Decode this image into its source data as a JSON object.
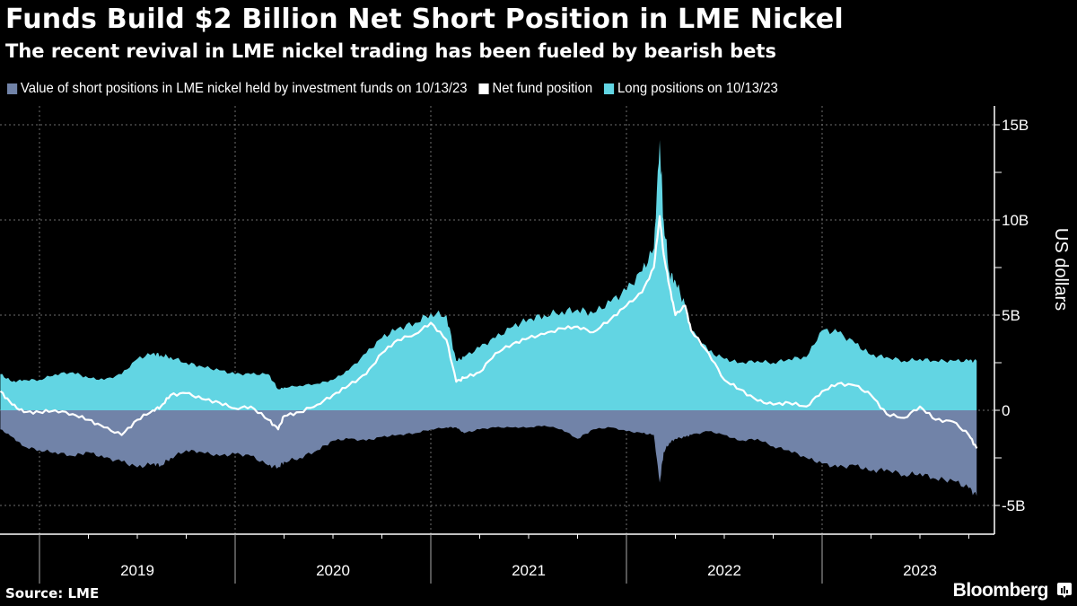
{
  "header": {
    "title": "Funds Build $2 Billion Net Short Position in LME Nickel",
    "subtitle": "The recent revival in LME nickel trading has been fueled by bearish bets"
  },
  "footer": {
    "source": "Source: LME",
    "brand": "Bloomberg"
  },
  "colors": {
    "short": "#7183A8",
    "net": "#FFFFFF",
    "long": "#62D5E3",
    "background": "#000000",
    "grid": "#6E6E6E"
  },
  "chart_data": {
    "type": "area",
    "title": "Funds Build $2 Billion Net Short Position in LME Nickel",
    "subtitle": "The recent revival in LME nickel trading has been fueled by bearish bets",
    "xlabel": "",
    "ylabel": "US dollars",
    "x_unit": "year (fractional)",
    "xlim": [
      2018.8,
      2023.95
    ],
    "ylim": [
      -6.5,
      16.5
    ],
    "y_ticks": [
      {
        "value": 15,
        "label": "15B"
      },
      {
        "value": 10,
        "label": "10B"
      },
      {
        "value": 5,
        "label": "5B"
      },
      {
        "value": 0,
        "label": "0"
      },
      {
        "value": -5,
        "label": "-5B"
      }
    ],
    "x_ticks": [
      {
        "value": 2019.5,
        "label": "2019"
      },
      {
        "value": 2020.5,
        "label": "2020"
      },
      {
        "value": 2021.5,
        "label": "2021"
      },
      {
        "value": 2022.5,
        "label": "2022"
      },
      {
        "value": 2023.5,
        "label": "2023"
      }
    ],
    "year_boundaries": [
      2019,
      2020,
      2021,
      2022,
      2023
    ],
    "grid": true,
    "legend_position": "top-left",
    "units": "US$ billions",
    "x": [
      2018.8,
      2018.86,
      2018.92,
      2019.0,
      2019.08,
      2019.17,
      2019.25,
      2019.33,
      2019.42,
      2019.5,
      2019.58,
      2019.62,
      2019.67,
      2019.75,
      2019.83,
      2019.92,
      2020.0,
      2020.08,
      2020.17,
      2020.22,
      2020.25,
      2020.33,
      2020.42,
      2020.5,
      2020.58,
      2020.67,
      2020.75,
      2020.83,
      2020.92,
      2021.0,
      2021.08,
      2021.13,
      2021.17,
      2021.25,
      2021.33,
      2021.42,
      2021.5,
      2021.58,
      2021.67,
      2021.75,
      2021.83,
      2021.92,
      2022.0,
      2022.08,
      2022.14,
      2022.17,
      2022.19,
      2022.22,
      2022.25,
      2022.3,
      2022.33,
      2022.42,
      2022.5,
      2022.58,
      2022.67,
      2022.75,
      2022.83,
      2022.92,
      2023.0,
      2023.08,
      2023.17,
      2023.25,
      2023.33,
      2023.42,
      2023.5,
      2023.58,
      2023.67,
      2023.75,
      2023.79
    ],
    "series": [
      {
        "name": "Value of short positions in LME nickel held by investment funds on 10/13/23",
        "key": "short",
        "values": [
          -1.0,
          -1.4,
          -1.9,
          -2.1,
          -2.2,
          -2.4,
          -2.2,
          -2.5,
          -2.7,
          -3.0,
          -2.8,
          -2.9,
          -2.5,
          -2.1,
          -2.2,
          -2.4,
          -2.3,
          -2.4,
          -2.9,
          -3.0,
          -2.7,
          -2.5,
          -2.1,
          -1.6,
          -1.5,
          -1.6,
          -1.4,
          -1.3,
          -1.2,
          -1.0,
          -0.9,
          -0.9,
          -1.2,
          -1.0,
          -0.9,
          -0.9,
          -0.9,
          -0.8,
          -1.0,
          -1.5,
          -1.0,
          -0.9,
          -1.1,
          -1.2,
          -1.3,
          -3.8,
          -2.2,
          -1.7,
          -1.5,
          -1.4,
          -1.3,
          -1.1,
          -1.3,
          -1.6,
          -1.5,
          -1.9,
          -2.1,
          -2.5,
          -2.8,
          -3.0,
          -2.9,
          -3.2,
          -3.1,
          -3.4,
          -3.3,
          -3.6,
          -3.7,
          -4.1,
          -4.5
        ]
      },
      {
        "name": "Net fund position",
        "key": "net",
        "values": [
          1.0,
          0.3,
          -0.1,
          -0.1,
          0.0,
          -0.2,
          -0.5,
          -0.9,
          -1.3,
          -0.5,
          0.0,
          0.2,
          0.8,
          0.9,
          0.6,
          0.4,
          0.1,
          0.2,
          -0.5,
          -1.0,
          -0.3,
          -0.1,
          0.3,
          0.8,
          1.3,
          1.9,
          3.0,
          3.7,
          4.0,
          4.6,
          3.7,
          1.5,
          1.7,
          2.0,
          3.0,
          3.5,
          3.8,
          4.0,
          4.3,
          4.4,
          4.1,
          4.8,
          5.5,
          6.2,
          7.5,
          10.2,
          8.2,
          6.5,
          5.0,
          5.5,
          4.2,
          3.0,
          1.6,
          1.1,
          0.5,
          0.3,
          0.4,
          0.2,
          1.0,
          1.4,
          1.3,
          0.8,
          -0.2,
          -0.4,
          0.2,
          -0.5,
          -0.6,
          -1.3,
          -2.0
        ]
      },
      {
        "name": "Long positions on 10/13/23",
        "key": "long",
        "values": [
          1.9,
          1.5,
          1.6,
          1.6,
          1.9,
          2.0,
          1.7,
          1.6,
          1.9,
          2.7,
          3.0,
          2.9,
          2.8,
          2.5,
          2.3,
          2.1,
          1.9,
          1.9,
          1.9,
          1.1,
          1.2,
          1.3,
          1.4,
          1.6,
          2.1,
          3.0,
          3.8,
          4.3,
          4.6,
          5.1,
          5.0,
          2.6,
          2.8,
          3.3,
          3.8,
          4.4,
          4.8,
          5.0,
          5.2,
          5.3,
          5.1,
          5.7,
          6.3,
          7.3,
          8.5,
          14.2,
          10.0,
          7.2,
          6.8,
          5.5,
          4.2,
          3.1,
          2.7,
          2.5,
          2.6,
          2.5,
          2.7,
          2.8,
          4.2,
          4.1,
          3.5,
          2.9,
          2.8,
          2.6,
          2.7,
          2.6,
          2.6,
          2.6,
          2.6
        ]
      }
    ]
  },
  "legend": [
    {
      "label": "Value of short positions in LME nickel held by investment funds on 10/13/23",
      "color": "#7183A8"
    },
    {
      "label": "Net fund position",
      "color": "#FFFFFF"
    },
    {
      "label": "Long positions on 10/13/23",
      "color": "#62D5E3"
    }
  ]
}
